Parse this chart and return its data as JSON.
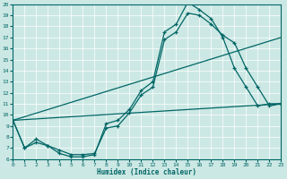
{
  "xlabel": "Humidex (Indice chaleur)",
  "bg_color": "#cce8e4",
  "line_color": "#006666",
  "grid_color": "#ffffff",
  "xlim": [
    0,
    23
  ],
  "ylim": [
    6,
    20
  ],
  "xticks": [
    0,
    1,
    2,
    3,
    4,
    5,
    6,
    7,
    8,
    9,
    10,
    11,
    12,
    13,
    14,
    15,
    16,
    17,
    18,
    19,
    20,
    21,
    22,
    23
  ],
  "yticks": [
    6,
    7,
    8,
    9,
    10,
    11,
    12,
    13,
    14,
    15,
    16,
    17,
    18,
    19,
    20
  ],
  "line1_x": [
    0,
    1,
    2,
    3,
    4,
    5,
    6,
    7,
    8,
    9,
    10,
    11,
    12,
    13,
    14,
    15,
    16,
    17,
    18,
    19,
    20,
    21,
    22,
    23
  ],
  "line1_y": [
    9.5,
    7.0,
    7.8,
    7.2,
    6.5,
    6.2,
    6.2,
    6.4,
    9.2,
    9.5,
    10.5,
    12.2,
    13.0,
    17.5,
    18.2,
    20.2,
    19.5,
    18.7,
    17.0,
    14.2,
    12.5,
    10.8,
    11.0,
    11.0
  ],
  "line2_x": [
    0,
    1,
    2,
    3,
    4,
    5,
    6,
    7,
    8,
    9,
    10,
    11,
    12,
    13,
    14,
    15,
    16,
    17,
    18,
    19,
    20,
    21,
    22,
    23
  ],
  "line2_y": [
    9.5,
    7.0,
    7.5,
    7.2,
    6.8,
    6.4,
    6.4,
    6.5,
    8.8,
    9.0,
    10.2,
    11.8,
    12.5,
    16.8,
    17.5,
    19.2,
    19.0,
    18.2,
    17.2,
    16.5,
    14.2,
    12.5,
    10.8,
    11.0
  ],
  "line3_x": [
    0,
    23
  ],
  "line3_y": [
    9.5,
    17.0
  ],
  "line4_x": [
    0,
    23
  ],
  "line4_y": [
    9.5,
    11.0
  ]
}
